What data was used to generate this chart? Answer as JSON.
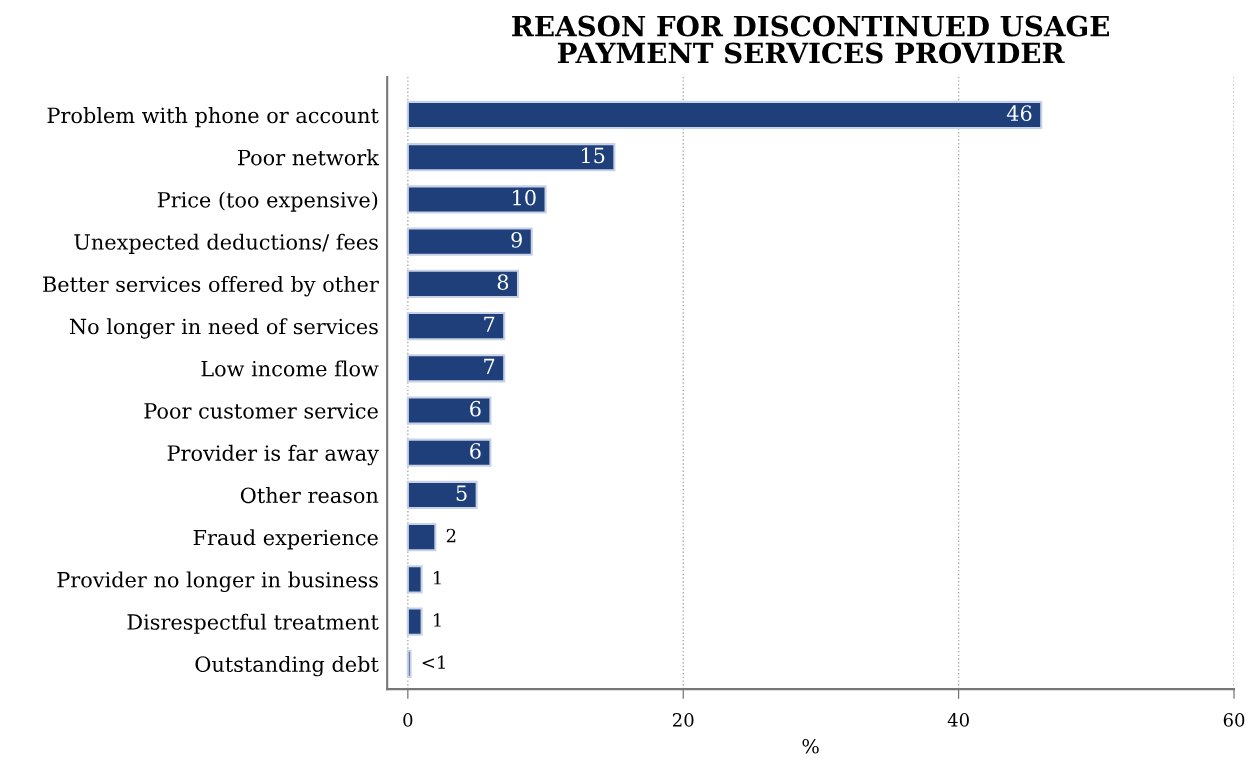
{
  "chart_data": {
    "type": "bar",
    "orientation": "horizontal",
    "title": "REASON FOR DISCONTINUED USAGE\nPAYMENT SERVICES PROVIDER",
    "xlabel": "%",
    "categories": [
      "Problem with phone or account",
      "Poor network",
      "Price (too expensive)",
      "Unexpected deductions/ fees",
      "Better services offered by other",
      "No longer in need of services",
      "Low income flow",
      "Poor customer service",
      "Provider is far away",
      "Other reason",
      "Fraud experience",
      "Provider no longer in business",
      "Disrespectful treatment",
      "Outstanding debt"
    ],
    "values": [
      46,
      15,
      10,
      9,
      8,
      7,
      7,
      6,
      6,
      5,
      2,
      1,
      1,
      0.2
    ],
    "value_labels": [
      "46",
      "15",
      "10",
      "9",
      "8",
      "7",
      "7",
      "6",
      "6",
      "5",
      "2",
      "1",
      "1",
      "<1"
    ],
    "color": "#1f3f7a",
    "xlim": [
      -1.5,
      60
    ],
    "xticks": [
      0,
      20,
      40,
      60
    ],
    "grid": "x"
  }
}
